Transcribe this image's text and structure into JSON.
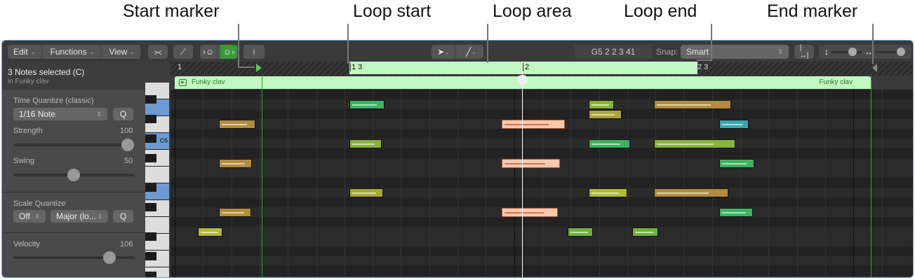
{
  "annotations": {
    "start_marker": "Start marker",
    "loop_start": "Loop start",
    "loop_area": "Loop area",
    "loop_end": "Loop end",
    "end_marker": "End marker"
  },
  "toolbar": {
    "edit": "Edit",
    "functions": "Functions",
    "view": "View",
    "position": "G5   2 2 3 41",
    "snap_label": "Snap:",
    "snap_value": "Smart"
  },
  "inspector": {
    "selection": "3 Notes selected (C)",
    "region": "in Funky clav",
    "time_quantize": {
      "label": "Time Quantize (classic)",
      "value": "1/16 Note",
      "q": "Q"
    },
    "strength": {
      "label": "Strength",
      "value": "100",
      "level": 100
    },
    "swing": {
      "label": "Swing",
      "value": "50",
      "level": 50
    },
    "scale_quantize": {
      "label": "Scale Quantize",
      "root": "Off",
      "scale": "Major (lo...",
      "q": "Q"
    },
    "velocity": {
      "label": "Velocity",
      "value": "106",
      "level": 106
    }
  },
  "keyboard": {
    "c5_label": "C5"
  },
  "ruler": {
    "bar1": "1",
    "loop_start": "1 3",
    "bar2": "2",
    "loop_end": "2 3"
  },
  "region": {
    "name": "Funky clav",
    "name_end": "Funky clav"
  },
  "colors": {
    "loop": "#c2f7c2",
    "selected_note": "#ffc9ad",
    "accent": "#3fa83f"
  }
}
